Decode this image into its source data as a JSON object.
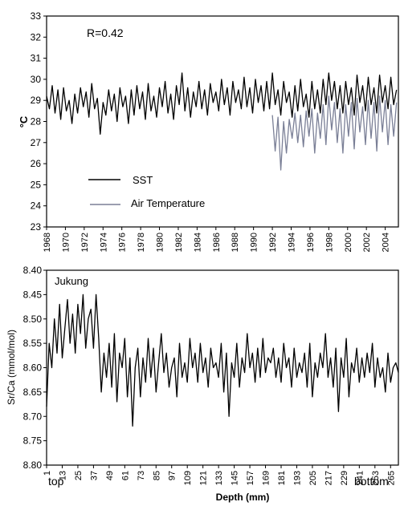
{
  "colors": {
    "sst": "#000000",
    "air": "#7a7f96",
    "axis": "#000000",
    "background": "#ffffff"
  },
  "chart_data": [
    {
      "type": "line",
      "annotation": "R=0.42",
      "ylabel": "°C",
      "xlabel": "",
      "xlim": [
        1968,
        2005.4
      ],
      "ylim": [
        23,
        33
      ],
      "y_ticks": [
        23,
        24,
        25,
        26,
        27,
        28,
        29,
        30,
        31,
        32,
        33
      ],
      "x_ticks": [
        1968,
        1970,
        1972,
        1974,
        1976,
        1978,
        1980,
        1982,
        1984,
        1986,
        1988,
        1990,
        1992,
        1994,
        1996,
        1998,
        2000,
        2002,
        2004
      ],
      "x_tick_labels": [
        "1968",
        "1970",
        "1972",
        "1974",
        "1976",
        "1978",
        "1980",
        "1982",
        "1984",
        "1986",
        "1988",
        "1990",
        "1992",
        "1994",
        "1996",
        "1998",
        "2000",
        "2002",
        "2004"
      ],
      "legend_position": "bottom-left",
      "series": [
        {
          "name": "SST",
          "color": "#000000",
          "x": [
            1968.0,
            1968.3,
            1968.6,
            1968.9,
            1969.2,
            1969.5,
            1969.8,
            1970.1,
            1970.4,
            1970.7,
            1971.0,
            1971.3,
            1971.6,
            1971.9,
            1972.2,
            1972.5,
            1972.8,
            1973.1,
            1973.4,
            1973.7,
            1974.0,
            1974.3,
            1974.6,
            1974.9,
            1975.2,
            1975.5,
            1975.8,
            1976.1,
            1976.4,
            1976.7,
            1977.0,
            1977.3,
            1977.6,
            1977.9,
            1978.2,
            1978.5,
            1978.8,
            1979.1,
            1979.4,
            1979.7,
            1980.0,
            1980.3,
            1980.6,
            1980.9,
            1981.2,
            1981.5,
            1981.8,
            1982.1,
            1982.4,
            1982.7,
            1983.0,
            1983.3,
            1983.6,
            1983.9,
            1984.2,
            1984.5,
            1984.8,
            1985.1,
            1985.4,
            1985.7,
            1986.0,
            1986.3,
            1986.6,
            1986.9,
            1987.2,
            1987.5,
            1987.8,
            1988.1,
            1988.4,
            1988.7,
            1989.0,
            1989.3,
            1989.6,
            1989.9,
            1990.2,
            1990.5,
            1990.8,
            1991.1,
            1991.4,
            1991.7,
            1992.0,
            1992.3,
            1992.6,
            1992.9,
            1993.2,
            1993.5,
            1993.8,
            1994.1,
            1994.4,
            1994.7,
            1995.0,
            1995.3,
            1995.6,
            1995.9,
            1996.2,
            1996.5,
            1996.8,
            1997.1,
            1997.4,
            1997.7,
            1998.0,
            1998.3,
            1998.6,
            1998.9,
            1999.2,
            1999.5,
            1999.8,
            2000.1,
            2000.4,
            2000.7,
            2001.0,
            2001.3,
            2001.6,
            2001.9,
            2002.2,
            2002.5,
            2002.8,
            2003.1,
            2003.4,
            2003.7,
            2004.0,
            2004.3,
            2004.6,
            2004.9,
            2005.2
          ],
          "y": [
            29.2,
            28.6,
            29.7,
            28.4,
            29.5,
            28.1,
            29.6,
            28.5,
            29.0,
            27.9,
            29.3,
            28.4,
            29.6,
            28.7,
            29.4,
            28.2,
            29.8,
            28.6,
            29.1,
            27.4,
            28.9,
            28.3,
            29.5,
            28.5,
            29.3,
            28.0,
            29.6,
            28.7,
            29.2,
            27.9,
            29.5,
            28.3,
            29.7,
            28.6,
            29.4,
            28.1,
            29.8,
            28.5,
            29.2,
            28.2,
            29.6,
            28.7,
            29.9,
            28.4,
            29.3,
            28.1,
            29.7,
            28.8,
            30.3,
            28.5,
            29.6,
            28.2,
            29.4,
            28.7,
            29.9,
            28.6,
            29.5,
            28.3,
            29.8,
            28.9,
            29.4,
            28.5,
            30.0,
            28.8,
            29.6,
            28.3,
            29.9,
            28.9,
            29.5,
            28.6,
            30.1,
            28.7,
            29.6,
            28.4,
            30.0,
            28.9,
            29.7,
            28.5,
            29.9,
            28.6,
            30.3,
            28.8,
            29.5,
            28.3,
            29.9,
            28.9,
            29.4,
            28.2,
            29.7,
            28.5,
            30.0,
            28.7,
            29.3,
            28.2,
            29.9,
            28.6,
            29.5,
            28.4,
            30.0,
            28.8,
            30.3,
            29.0,
            29.9,
            28.6,
            29.7,
            28.4,
            29.9,
            28.8,
            29.6,
            28.3,
            30.2,
            28.9,
            29.7,
            28.5,
            30.1,
            28.8,
            29.6,
            28.4,
            30.2,
            28.9,
            29.7,
            28.6,
            30.1,
            28.8,
            29.5
          ]
        },
        {
          "name": "Air Temperature",
          "color": "#7a7f96",
          "x": [
            1992.0,
            1992.3,
            1992.6,
            1992.9,
            1993.2,
            1993.5,
            1993.8,
            1994.1,
            1994.4,
            1994.7,
            1995.0,
            1995.3,
            1995.6,
            1995.9,
            1996.2,
            1996.5,
            1996.8,
            1997.1,
            1997.4,
            1997.7,
            1998.0,
            1998.3,
            1998.6,
            1998.9,
            1999.2,
            1999.5,
            1999.8,
            2000.1,
            2000.4,
            2000.7,
            2001.0,
            2001.3,
            2001.6,
            2001.9,
            2002.2,
            2002.5,
            2002.8,
            2003.1,
            2003.4,
            2003.7,
            2004.0,
            2004.3,
            2004.6,
            2004.9,
            2005.2
          ],
          "y": [
            28.3,
            26.6,
            28.2,
            25.7,
            28.0,
            26.5,
            28.1,
            27.2,
            28.4,
            27.0,
            28.3,
            26.8,
            28.5,
            27.3,
            28.6,
            26.5,
            28.4,
            27.2,
            28.8,
            26.9,
            29.2,
            27.6,
            28.9,
            27.0,
            28.6,
            26.5,
            28.8,
            27.3,
            28.9,
            26.7,
            29.1,
            27.5,
            28.7,
            26.9,
            29.0,
            27.2,
            28.9,
            26.6,
            29.2,
            27.5,
            29.0,
            26.9,
            28.8,
            27.3,
            28.9
          ]
        }
      ]
    },
    {
      "type": "line",
      "annotation": "Jukung",
      "ylabel": "Sr/Ca (mmol/mol)",
      "xlabel": "Depth (mm)",
      "x_end_labels": [
        "top",
        "bottom"
      ],
      "y_inverted": true,
      "ylim": [
        8.4,
        8.8
      ],
      "xlim": [
        1,
        271
      ],
      "y_ticks": [
        8.4,
        8.45,
        8.5,
        8.55,
        8.6,
        8.65,
        8.7,
        8.75,
        8.8
      ],
      "y_tick_labels": [
        "8.40",
        "8.45",
        "8.50",
        "8.55",
        "8.60",
        "8.65",
        "8.70",
        "8.75",
        "8.80"
      ],
      "x_ticks": [
        1,
        13,
        25,
        37,
        49,
        61,
        73,
        85,
        97,
        109,
        121,
        133,
        145,
        157,
        169,
        181,
        193,
        205,
        217,
        229,
        241,
        253,
        265
      ],
      "x_tick_labels": [
        "1",
        "13",
        "25",
        "37",
        "49",
        "61",
        "73",
        "85",
        "97",
        "109",
        "121",
        "133",
        "145",
        "157",
        "169",
        "181",
        "193",
        "205",
        "217",
        "229",
        "241",
        "253",
        "265"
      ],
      "series": [
        {
          "name": "",
          "color": "#000000",
          "x": [
            1,
            3,
            5,
            7,
            9,
            11,
            13,
            15,
            17,
            19,
            21,
            23,
            25,
            27,
            29,
            31,
            33,
            35,
            37,
            39,
            41,
            43,
            45,
            47,
            49,
            51,
            53,
            55,
            57,
            59,
            61,
            63,
            65,
            67,
            69,
            71,
            73,
            75,
            77,
            79,
            81,
            83,
            85,
            87,
            89,
            91,
            93,
            95,
            97,
            99,
            101,
            103,
            105,
            107,
            109,
            111,
            113,
            115,
            117,
            119,
            121,
            123,
            125,
            127,
            129,
            131,
            133,
            135,
            137,
            139,
            141,
            143,
            145,
            147,
            149,
            151,
            153,
            155,
            157,
            159,
            161,
            163,
            165,
            167,
            169,
            171,
            173,
            175,
            177,
            179,
            181,
            183,
            185,
            187,
            189,
            191,
            193,
            195,
            197,
            199,
            201,
            203,
            205,
            207,
            209,
            211,
            213,
            215,
            217,
            219,
            221,
            223,
            225,
            227,
            229,
            231,
            233,
            235,
            237,
            239,
            241,
            243,
            245,
            247,
            249,
            251,
            253,
            255,
            257,
            259,
            261,
            263,
            265,
            267,
            269,
            271
          ],
          "y": [
            8.68,
            8.55,
            8.6,
            8.5,
            8.57,
            8.47,
            8.58,
            8.52,
            8.46,
            8.55,
            8.49,
            8.57,
            8.47,
            8.53,
            8.45,
            8.56,
            8.5,
            8.48,
            8.56,
            8.45,
            8.54,
            8.65,
            8.57,
            8.62,
            8.55,
            8.64,
            8.53,
            8.67,
            8.57,
            8.6,
            8.54,
            8.66,
            8.58,
            8.72,
            8.6,
            8.56,
            8.66,
            8.58,
            8.63,
            8.54,
            8.62,
            8.56,
            8.65,
            8.59,
            8.53,
            8.61,
            8.57,
            8.64,
            8.6,
            8.58,
            8.66,
            8.55,
            8.62,
            8.59,
            8.63,
            8.54,
            8.6,
            8.57,
            8.63,
            8.55,
            8.61,
            8.58,
            8.64,
            8.56,
            8.6,
            8.59,
            8.62,
            8.55,
            8.65,
            8.57,
            8.7,
            8.59,
            8.62,
            8.55,
            8.64,
            8.58,
            8.61,
            8.53,
            8.6,
            8.57,
            8.63,
            8.56,
            8.62,
            8.54,
            8.61,
            8.58,
            8.59,
            8.56,
            8.62,
            8.58,
            8.63,
            8.55,
            8.6,
            8.58,
            8.64,
            8.56,
            8.62,
            8.59,
            8.61,
            8.57,
            8.64,
            8.55,
            8.66,
            8.59,
            8.62,
            8.57,
            8.6,
            8.53,
            8.62,
            8.58,
            8.64,
            8.56,
            8.69,
            8.58,
            8.62,
            8.54,
            8.66,
            8.59,
            8.61,
            8.56,
            8.63,
            8.58,
            8.62,
            8.57,
            8.61,
            8.55,
            8.64,
            8.58,
            8.62,
            8.6,
            8.65,
            8.57,
            8.63,
            8.6,
            8.59,
            8.61
          ]
        }
      ]
    }
  ]
}
